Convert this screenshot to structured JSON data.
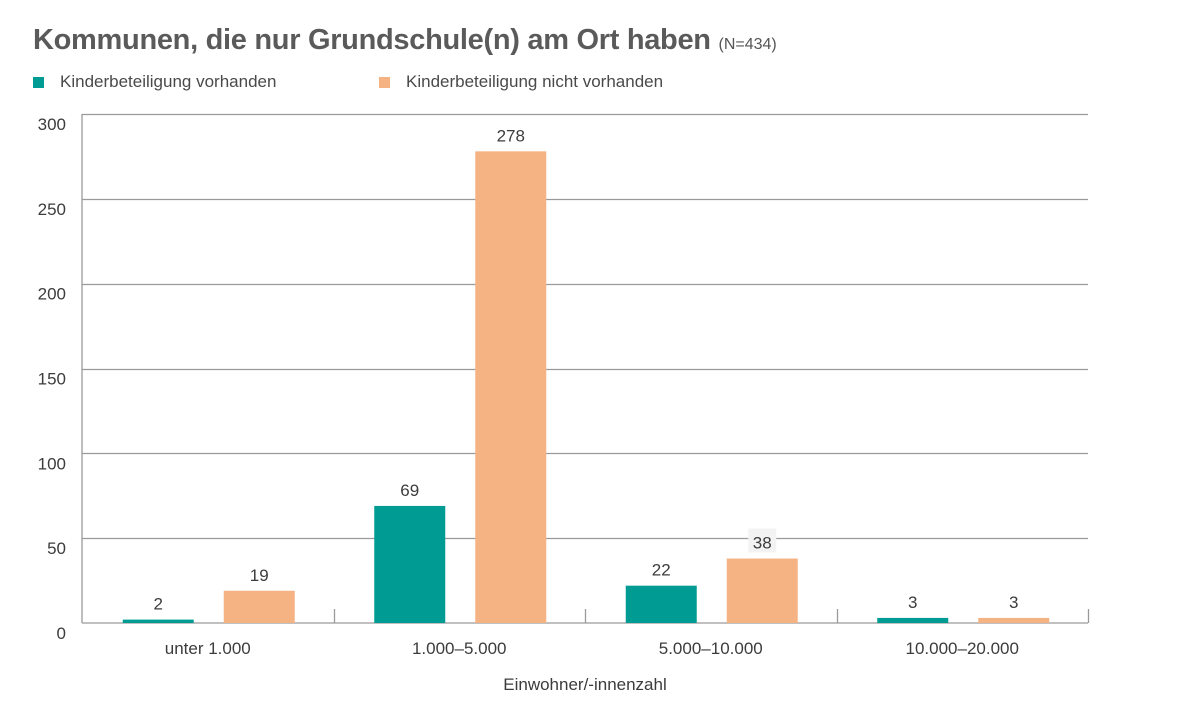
{
  "chart_data": {
    "type": "bar",
    "title": "Kommunen, die nur Grundschule(n) am Ort haben",
    "subtitle": "(N=434)",
    "xlabel": "Einwohner/-innenzahl",
    "ylabel": "",
    "categories": [
      "unter 1.000",
      "1.000–5.000",
      "5.000–10.000",
      "10.000–20.000"
    ],
    "series": [
      {
        "name": "Kinderbeteiligung vorhanden",
        "color": "#009b93",
        "values": [
          2,
          69,
          22,
          3
        ]
      },
      {
        "name": "Kinderbeteiligung nicht vorhanden",
        "color": "#f5b383",
        "values": [
          19,
          278,
          38,
          3
        ]
      }
    ],
    "ylim": [
      0,
      300
    ],
    "yticks": [
      0,
      50,
      100,
      150,
      200,
      250,
      300
    ],
    "grid": true,
    "legend_position": "top-left"
  }
}
